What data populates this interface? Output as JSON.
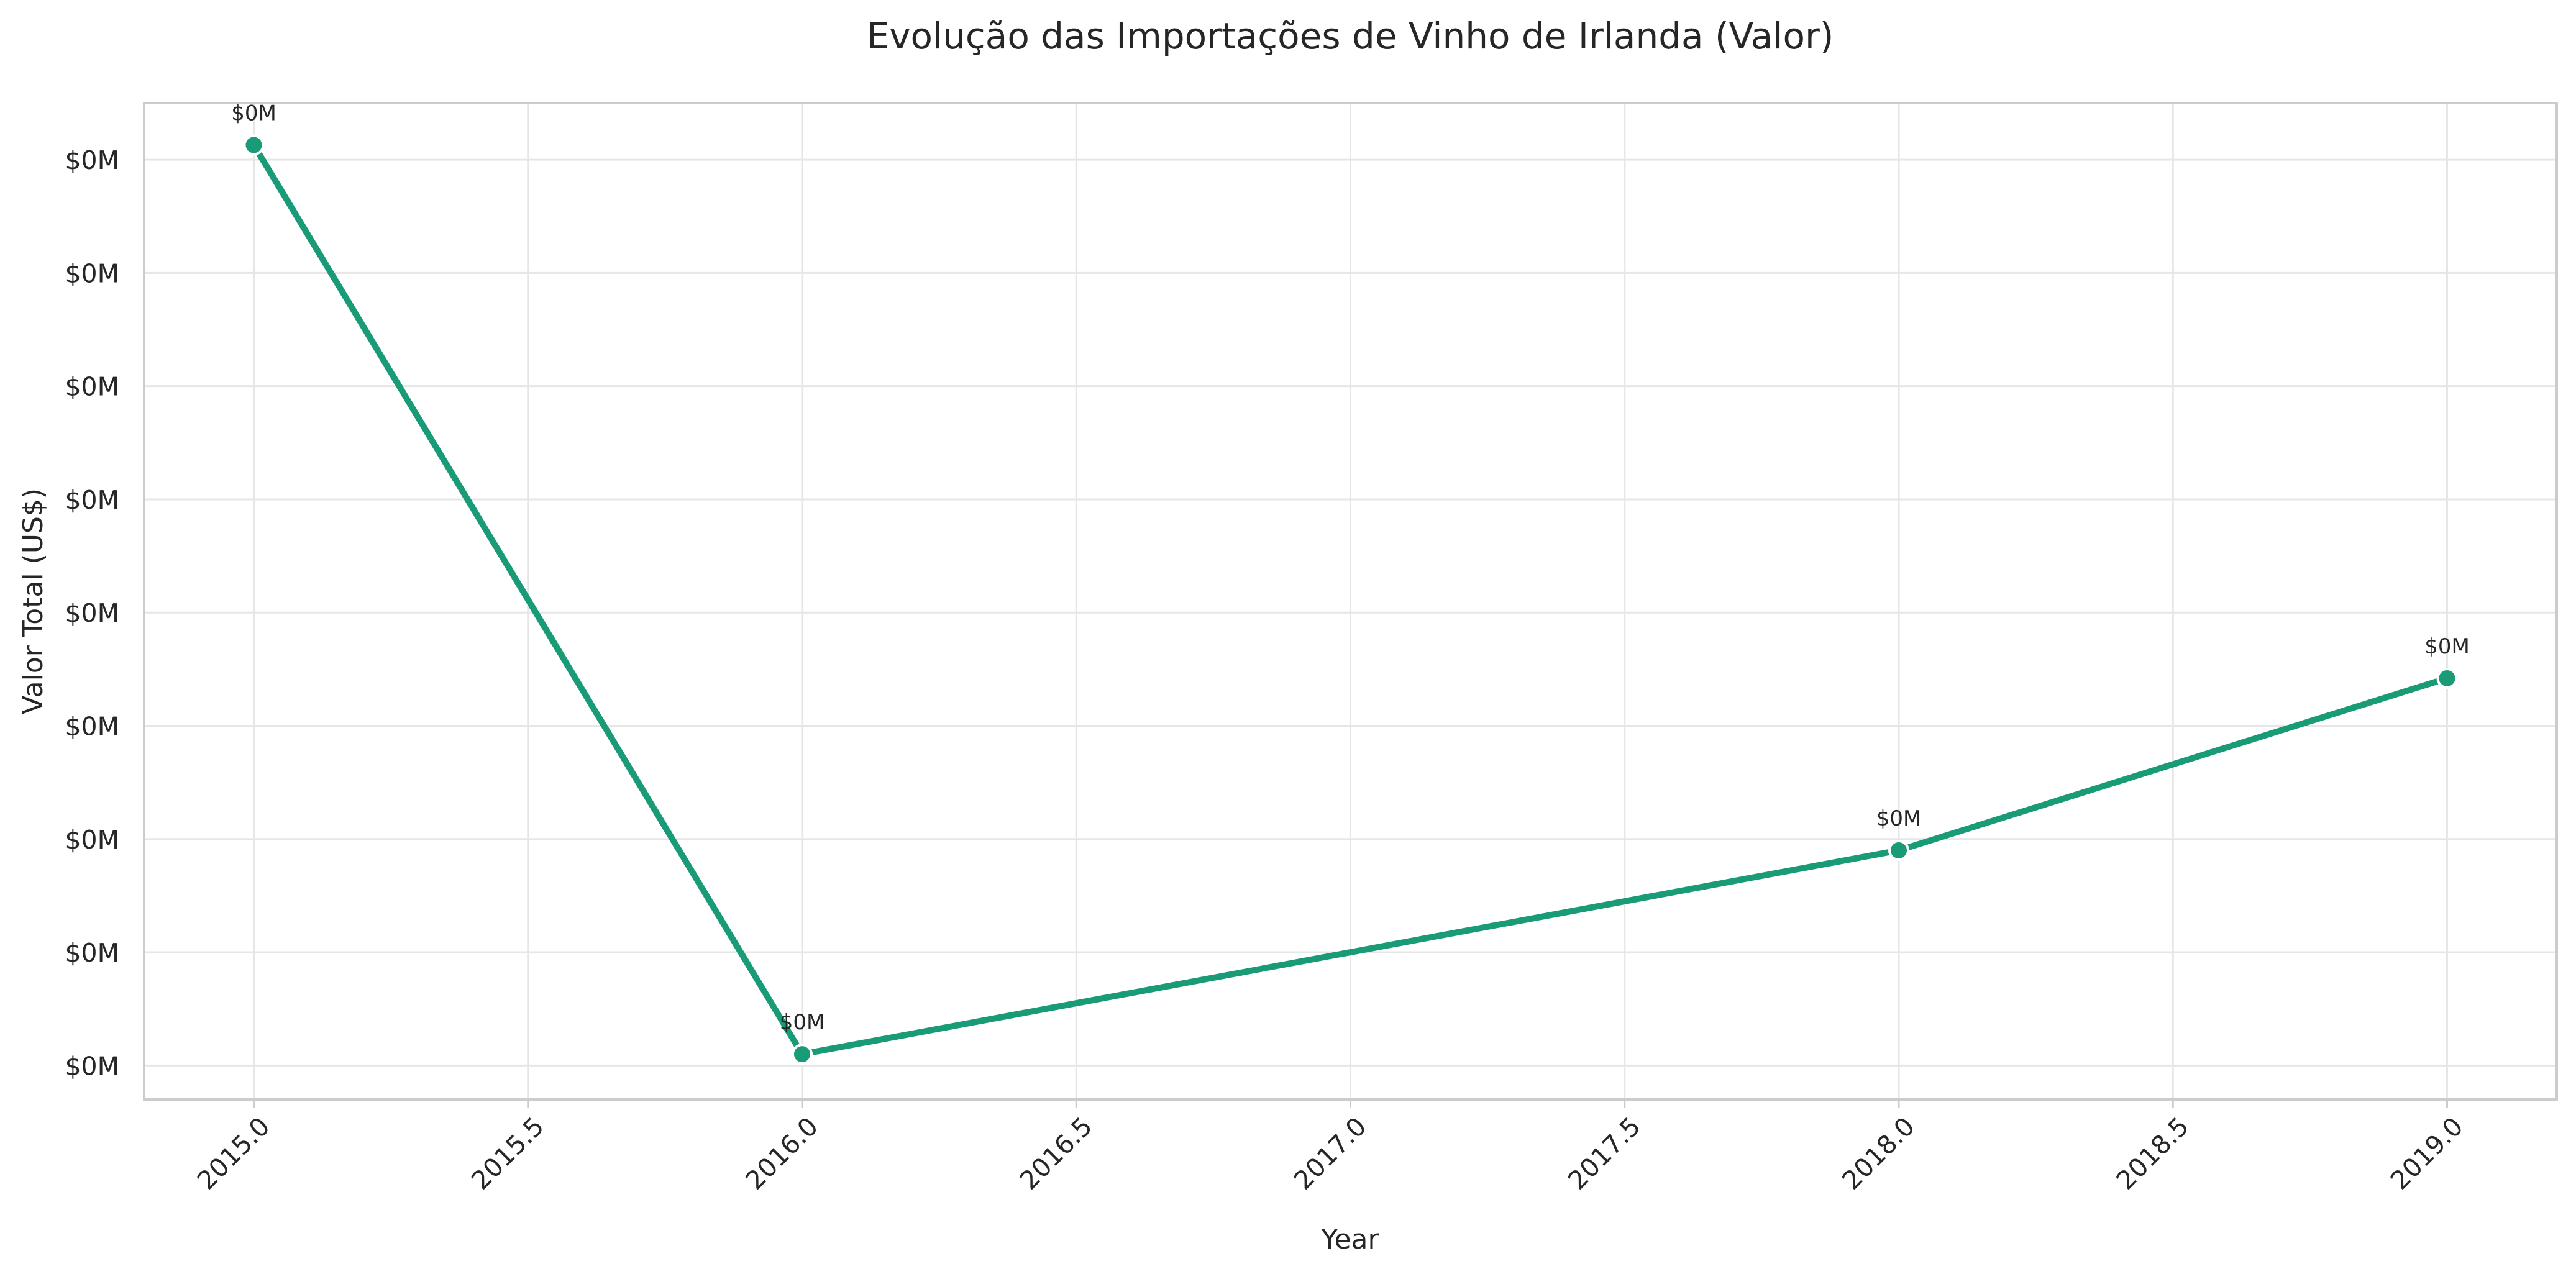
{
  "chart_data": {
    "type": "line",
    "title": "Evolução das Importações de Vinho de Irlanda (Valor)",
    "xlabel": "Year",
    "ylabel": "Valor Total (US$)",
    "xlim": [
      2014.8,
      2019.2
    ],
    "ylim": [
      0,
      8.8
    ],
    "x_ticks": [
      2015.0,
      2015.5,
      2016.0,
      2016.5,
      2017.0,
      2017.5,
      2018.0,
      2018.5,
      2019.0
    ],
    "x_tick_labels": [
      "2015.0",
      "2015.5",
      "2016.0",
      "2016.5",
      "2017.0",
      "2017.5",
      "2018.0",
      "2018.5",
      "2019.0"
    ],
    "y_ticks": [
      0.3,
      1.3,
      2.3,
      3.3,
      4.3,
      5.3,
      6.3,
      7.3,
      8.3
    ],
    "y_tick_labels": [
      "$0M",
      "$0M",
      "$0M",
      "$0M",
      "$0M",
      "$0M",
      "$0M",
      "$0M",
      "$0M"
    ],
    "grid": true,
    "series": [
      {
        "color": "#1a9b78",
        "x": [
          2015,
          2016,
          2018,
          2019
        ],
        "y": [
          8.43,
          0.4,
          2.2,
          3.72
        ],
        "labels": [
          "$0M",
          "$0M",
          "$0M",
          "$0M"
        ]
      }
    ]
  }
}
